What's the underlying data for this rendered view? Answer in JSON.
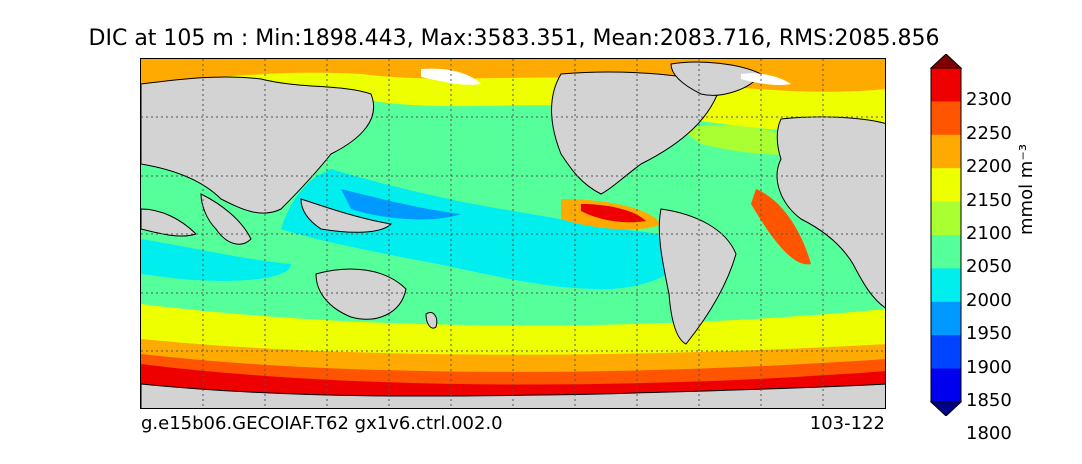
{
  "title": "DIC at 105 m : Min:1898.443, Max:3583.351, Mean:2083.716, RMS:2085.856",
  "footer": {
    "case": "g.e15b06.GECOIAF.T62 gx1v6.ctrl.002.0",
    "years": "103-122"
  },
  "colorbar": {
    "unit": "mmol m⁻³",
    "levels": [
      "2300",
      "2250",
      "2200",
      "2150",
      "2100",
      "2050",
      "2000",
      "1950",
      "1900",
      "1850",
      "1800"
    ],
    "colors": [
      "#7f0000",
      "#ee0000",
      "#ff5500",
      "#ffaa00",
      "#eeff00",
      "#aaff33",
      "#55ff99",
      "#00eeee",
      "#0099ff",
      "#0044ff",
      "#0000ee",
      "#00008b"
    ]
  },
  "map": {
    "land_color": "#d3d3d3",
    "ice_color": "#ffffff"
  }
}
